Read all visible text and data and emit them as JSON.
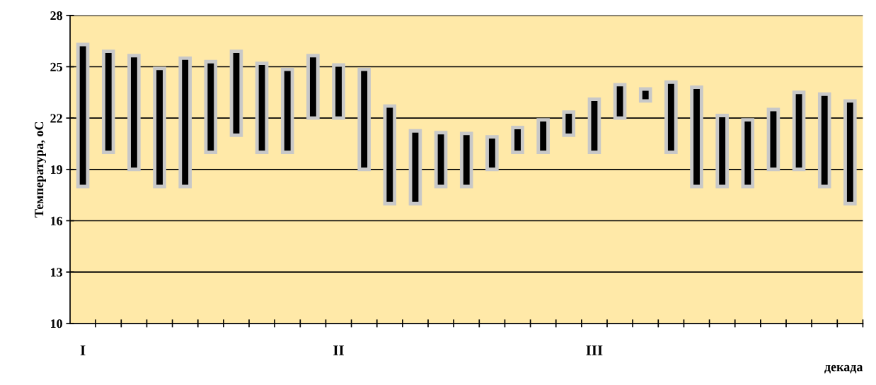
{
  "chart_data": {
    "type": "bar",
    "xlabel": "декада",
    "ylabel": "Температура, оС",
    "categories": [
      "I",
      null,
      null,
      null,
      null,
      null,
      null,
      null,
      null,
      null,
      "II",
      null,
      null,
      null,
      null,
      null,
      null,
      null,
      null,
      null,
      "III",
      null,
      null,
      null,
      null,
      null,
      null,
      null,
      null,
      null,
      null
    ],
    "base": [
      18,
      20,
      19,
      18,
      18,
      20,
      21,
      20,
      20,
      22,
      22,
      19,
      17,
      17,
      18,
      18,
      19,
      20,
      20,
      21,
      20,
      22,
      23,
      20,
      18,
      18,
      18,
      19,
      19,
      18,
      17
    ],
    "values": [
      8.3,
      5.9,
      6.65,
      6.9,
      7.5,
      5.3,
      4.9,
      5.2,
      4.85,
      3.65,
      3.1,
      5.85,
      5.7,
      4.25,
      3.15,
      3.1,
      1.9,
      1.45,
      1.9,
      1.35,
      3.1,
      1.95,
      0.7,
      4.1,
      5.8,
      4.15,
      3.9,
      3.5,
      4.5,
      5.4,
      6.0
    ],
    "color": "#000000",
    "ylim": [
      10,
      28
    ],
    "yticks": [
      10,
      13,
      16,
      19,
      22,
      25,
      28
    ],
    "grid": "y",
    "legend": false
  }
}
